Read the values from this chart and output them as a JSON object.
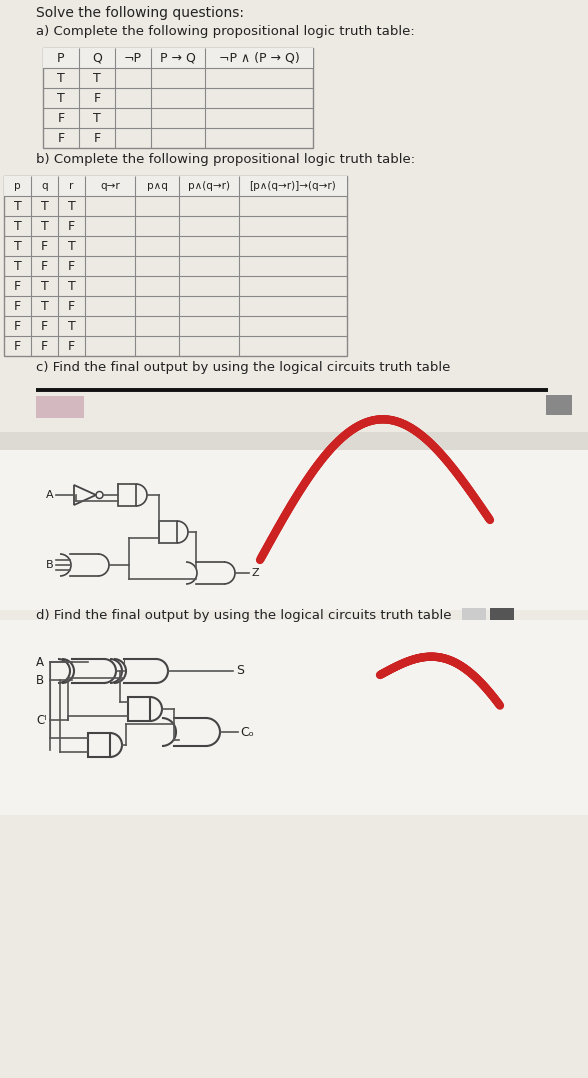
{
  "bg_color": "#ede9e3",
  "bg_color_light": "#f5f3f0",
  "bg_circuit_c": "#f0ecec",
  "bg_circuit_d": "#f0ecec",
  "title": "Solve the following questions:",
  "section_a_title": "a) Complete the following propositional logic truth table:",
  "section_b_title": "b) Complete the following propositional logic truth table:",
  "section_c_title": "c) Find the final output by using the logical circuits truth table",
  "section_d_title": "d) Find the final output by using the logical circuits truth table",
  "table_a_headers": [
    "P",
    "Q",
    "¬P",
    "P → Q",
    "¬P ∧ (P → Q)"
  ],
  "table_a_rows": [
    [
      "T",
      "T"
    ],
    [
      "T",
      "F"
    ],
    [
      "F",
      "T"
    ],
    [
      "F",
      "F"
    ]
  ],
  "table_b_headers": [
    "p",
    "q",
    "r",
    "q→r",
    "p∧q",
    "p∧(q→r)",
    "[p∧(q→r)]→(q→r)"
  ],
  "table_b_rows": [
    [
      "T",
      "T",
      "T"
    ],
    [
      "T",
      "T",
      "F"
    ],
    [
      "T",
      "F",
      "T"
    ],
    [
      "T",
      "F",
      "F"
    ],
    [
      "F",
      "T",
      "T"
    ],
    [
      "F",
      "T",
      "F"
    ],
    [
      "F",
      "F",
      "T"
    ],
    [
      "F",
      "F",
      "F"
    ]
  ],
  "gate_color": "#444444",
  "wire_color": "#555555",
  "pink_box_color": "#d4b8c0",
  "gray_box_color": "#888888",
  "dark_gray_box": "#555555",
  "light_gray_box": "#cccccc",
  "red_stroke_color": "#cc2222",
  "separator_color": "#111111"
}
